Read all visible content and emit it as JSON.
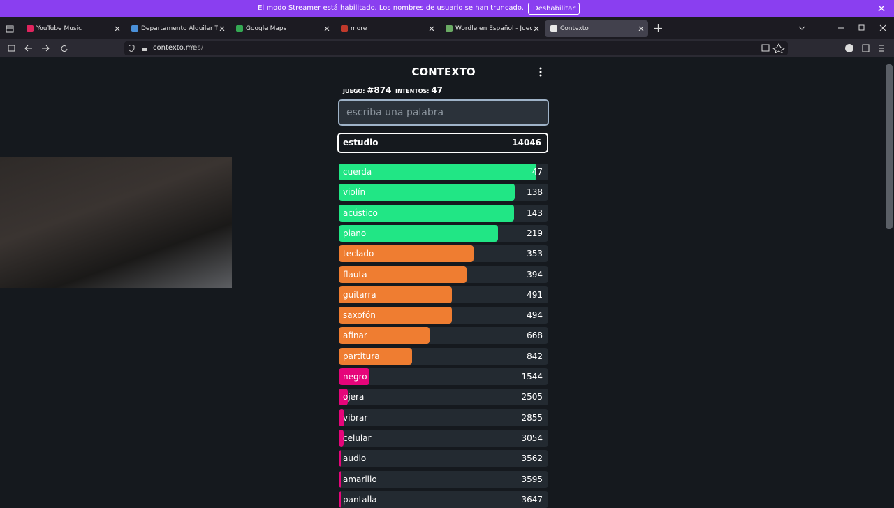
{
  "banner": {
    "message": "El modo Streamer está habilitado. Los nombres de usuario se han truncado.",
    "button": "Deshabilitar"
  },
  "tabs": [
    {
      "title": "YouTube Music",
      "icon": "#e0245e"
    },
    {
      "title": "Departamento Alquiler Tempor",
      "icon": "#4a90d9"
    },
    {
      "title": "Google Maps",
      "icon": "#34a853"
    },
    {
      "title": "more",
      "icon": "#c0392b"
    },
    {
      "title": "Wordle en Español - Juega Wor",
      "icon": "#6aaa64"
    },
    {
      "title": "Contexto",
      "icon": "#e8e8e8"
    }
  ],
  "active_tab": 5,
  "address": {
    "host": "contexto.me",
    "path": "/es/"
  },
  "game": {
    "title": "CONTEXTO",
    "game_label": "JUEGO:",
    "game_number": "#874",
    "attempts_label": "INTENTOS:",
    "attempts": 47,
    "input_placeholder": "escriba una palabra",
    "last_guess": {
      "word": "estudio",
      "rank": 14046
    },
    "guesses": [
      {
        "word": "cuerda",
        "rank": 47
      },
      {
        "word": "violín",
        "rank": 138
      },
      {
        "word": "acústico",
        "rank": 143
      },
      {
        "word": "piano",
        "rank": 219
      },
      {
        "word": "teclado",
        "rank": 353
      },
      {
        "word": "flauta",
        "rank": 394
      },
      {
        "word": "guitarra",
        "rank": 491
      },
      {
        "word": "saxofón",
        "rank": 494
      },
      {
        "word": "afinar",
        "rank": 668
      },
      {
        "word": "partitura",
        "rank": 842
      },
      {
        "word": "negro",
        "rank": 1544
      },
      {
        "word": "ojera",
        "rank": 2505
      },
      {
        "word": "vibrar",
        "rank": 2855
      },
      {
        "word": "celular",
        "rank": 3054
      },
      {
        "word": "audio",
        "rank": 3562
      },
      {
        "word": "amarillo",
        "rank": 3595
      },
      {
        "word": "pantalla",
        "rank": 3647
      }
    ]
  }
}
